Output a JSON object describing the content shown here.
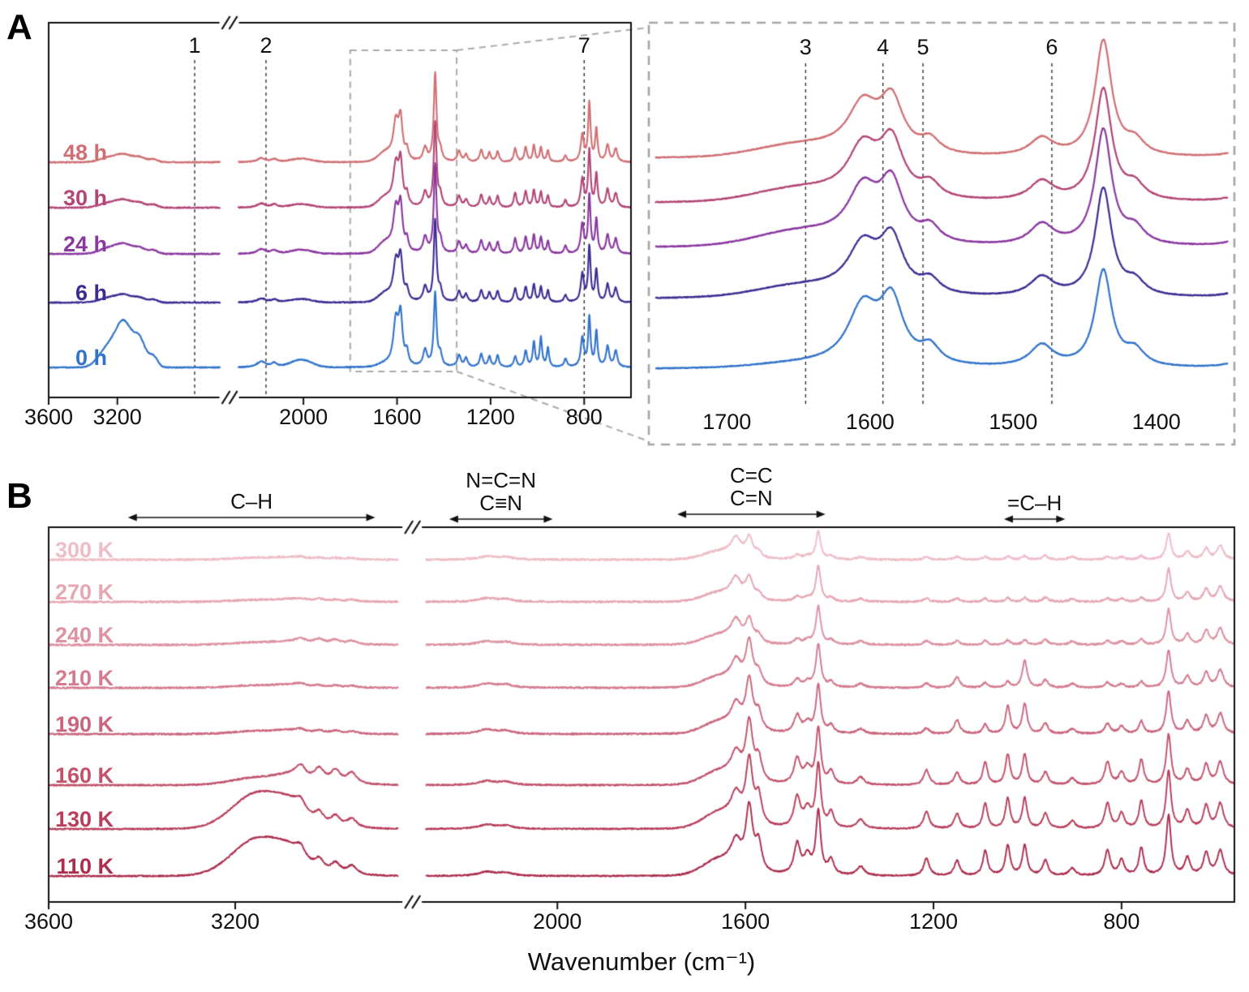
{
  "chart_data": [
    {
      "id": "panel_a_time_series",
      "type": "line",
      "panel_label": "A",
      "xlabel": "",
      "ylabel": "",
      "x_unit": "cm⁻¹",
      "x_axis_break": true,
      "x_ticks": [
        {
          "label": "3600",
          "value": 3600
        },
        {
          "label": "3200",
          "value": 3200
        },
        {
          "label": "2000",
          "value": 2000
        },
        {
          "label": "1600",
          "value": 1600
        },
        {
          "label": "1200",
          "value": 1200
        },
        {
          "label": "800",
          "value": 800
        }
      ],
      "marker_lines": [
        {
          "label": "1",
          "wavenumber": 2750
        },
        {
          "label": "2",
          "wavenumber": 2160
        },
        {
          "label": "7",
          "wavenumber": 800
        }
      ],
      "peaks_wn_width": [
        [
          3250,
          55
        ],
        [
          3160,
          45
        ],
        [
          3070,
          35
        ],
        [
          2990,
          25
        ],
        [
          2180,
          22
        ],
        [
          2125,
          16
        ],
        [
          2010,
          45
        ],
        [
          1650,
          30
        ],
        [
          1605,
          13
        ],
        [
          1585,
          10
        ],
        [
          1558,
          8
        ],
        [
          1480,
          10
        ],
        [
          1437,
          7
        ],
        [
          1415,
          8
        ],
        [
          1335,
          9
        ],
        [
          1305,
          8
        ],
        [
          1240,
          8
        ],
        [
          1205,
          7
        ],
        [
          1170,
          7
        ],
        [
          1095,
          7
        ],
        [
          1050,
          7
        ],
        [
          1015,
          6
        ],
        [
          985,
          6
        ],
        [
          955,
          6
        ],
        [
          880,
          7
        ],
        [
          808,
          8
        ],
        [
          778,
          6
        ],
        [
          748,
          6
        ],
        [
          700,
          8
        ],
        [
          665,
          8
        ]
      ],
      "series": [
        {
          "name": "48 h",
          "color": "#d06f73",
          "noise": 1.3,
          "amps": [
            0.08,
            0.12,
            0.08,
            0.05,
            0.07,
            0.05,
            0.06,
            0.15,
            0.62,
            0.68,
            0.18,
            0.23,
            1.5,
            0.18,
            0.18,
            0.12,
            0.2,
            0.16,
            0.18,
            0.23,
            0.25,
            0.28,
            0.24,
            0.19,
            0.11,
            0.46,
            1.0,
            0.55,
            0.29,
            0.23
          ]
        },
        {
          "name": "30 h",
          "color": "#b34577",
          "noise": 1.3,
          "amps": [
            0.08,
            0.12,
            0.08,
            0.05,
            0.07,
            0.05,
            0.06,
            0.16,
            0.65,
            0.72,
            0.19,
            0.25,
            1.45,
            0.19,
            0.19,
            0.13,
            0.21,
            0.17,
            0.19,
            0.25,
            0.27,
            0.3,
            0.26,
            0.2,
            0.12,
            0.48,
            0.97,
            0.56,
            0.3,
            0.24
          ]
        },
        {
          "name": "24 h",
          "color": "#8a37a0",
          "noise": 1.3,
          "amps": [
            0.1,
            0.15,
            0.1,
            0.06,
            0.08,
            0.06,
            0.07,
            0.18,
            0.68,
            0.75,
            0.2,
            0.27,
            1.5,
            0.2,
            0.2,
            0.14,
            0.22,
            0.18,
            0.2,
            0.26,
            0.28,
            0.32,
            0.28,
            0.21,
            0.13,
            0.5,
            1.0,
            0.58,
            0.31,
            0.25
          ]
        },
        {
          "name": "6 h",
          "color": "#3c2d93",
          "noise": 1.3,
          "amps": [
            0.08,
            0.12,
            0.08,
            0.05,
            0.07,
            0.05,
            0.06,
            0.14,
            0.62,
            0.7,
            0.18,
            0.25,
            1.4,
            0.18,
            0.18,
            0.13,
            0.2,
            0.17,
            0.19,
            0.24,
            0.26,
            0.3,
            0.26,
            0.2,
            0.12,
            0.48,
            0.95,
            0.55,
            0.3,
            0.24
          ]
        },
        {
          "name": "0 h",
          "color": "#3173cb",
          "noise": 1.2,
          "amps": [
            0.35,
            0.7,
            0.45,
            0.18,
            0.1,
            0.07,
            0.13,
            0.05,
            0.75,
            0.8,
            0.22,
            0.28,
            1.25,
            0.2,
            0.2,
            0.15,
            0.22,
            0.18,
            0.2,
            0.18,
            0.28,
            0.42,
            0.5,
            0.32,
            0.14,
            0.5,
            0.85,
            0.6,
            0.35,
            0.28
          ]
        }
      ],
      "inset": {
        "x_range": [
          1750,
          1350
        ],
        "zoom_source_range": [
          1800,
          1345
        ],
        "x_ticks": [
          {
            "label": "1700",
            "value": 1700
          },
          {
            "label": "1600",
            "value": 1600
          },
          {
            "label": "1500",
            "value": 1500
          },
          {
            "label": "1400",
            "value": 1400
          }
        ],
        "marker_lines": [
          {
            "label": "3",
            "wavenumber": 1645
          },
          {
            "label": "4",
            "wavenumber": 1591
          },
          {
            "label": "5",
            "wavenumber": 1563
          },
          {
            "label": "6",
            "wavenumber": 1473
          }
        ]
      }
    },
    {
      "id": "panel_b_temperature_series",
      "type": "line",
      "panel_label": "B",
      "xlabel": "Wavenumber (cm⁻¹)",
      "ylabel": "",
      "x_unit": "cm⁻¹",
      "x_axis_break": true,
      "x_ticks": [
        {
          "label": "3600",
          "value": 3600
        },
        {
          "label": "3200",
          "value": 3200
        },
        {
          "label": "2000",
          "value": 2000
        },
        {
          "label": "1600",
          "value": 1600
        },
        {
          "label": "1200",
          "value": 1200
        },
        {
          "label": "800",
          "value": 800
        }
      ],
      "annotations": [
        {
          "lines": [
            "C–H"
          ],
          "wn_from": 3430,
          "wn_to": 2900
        },
        {
          "lines": [
            "N=C=N",
            "C≡N"
          ],
          "wn_from": 2230,
          "wn_to": 2010
        },
        {
          "lines": [
            "C=C",
            "C=N"
          ],
          "wn_from": 1745,
          "wn_to": 1430
        },
        {
          "lines": [
            "=C–H"
          ],
          "wn_from": 1050,
          "wn_to": 920
        }
      ],
      "peaks_wn_width": [
        [
          3150,
          55
        ],
        [
          3080,
          30
        ],
        [
          3060,
          14
        ],
        [
          3020,
          13
        ],
        [
          2985,
          13
        ],
        [
          2950,
          13
        ],
        [
          2150,
          22
        ],
        [
          2110,
          18
        ],
        [
          1655,
          35
        ],
        [
          1620,
          13
        ],
        [
          1592,
          9
        ],
        [
          1572,
          8
        ],
        [
          1490,
          8
        ],
        [
          1468,
          9
        ],
        [
          1445,
          6
        ],
        [
          1418,
          7
        ],
        [
          1355,
          9
        ],
        [
          1215,
          7
        ],
        [
          1150,
          7
        ],
        [
          1090,
          6
        ],
        [
          1042,
          6
        ],
        [
          1006,
          6
        ],
        [
          962,
          7
        ],
        [
          905,
          8
        ],
        [
          830,
          7
        ],
        [
          800,
          7
        ],
        [
          758,
          6
        ],
        [
          700,
          6
        ],
        [
          660,
          7
        ],
        [
          620,
          7
        ],
        [
          590,
          8
        ]
      ],
      "series": [
        {
          "name": "300 K",
          "color": "#efbdc7",
          "noise": 2.4,
          "amps": [
            0.04,
            0.03,
            0.03,
            0.03,
            0.03,
            0.03,
            0.06,
            0.05,
            0.15,
            0.35,
            0.38,
            0.12,
            0.08,
            0.06,
            0.55,
            0.06,
            0.05,
            0.06,
            0.06,
            0.06,
            0.07,
            0.07,
            0.08,
            0.06,
            0.06,
            0.05,
            0.07,
            0.52,
            0.16,
            0.22,
            0.28
          ]
        },
        {
          "name": "270 K",
          "color": "#e6a7b3",
          "noise": 2.3,
          "amps": [
            0.04,
            0.03,
            0.04,
            0.05,
            0.04,
            0.04,
            0.07,
            0.05,
            0.17,
            0.38,
            0.42,
            0.13,
            0.09,
            0.07,
            0.7,
            0.07,
            0.06,
            0.07,
            0.07,
            0.07,
            0.08,
            0.08,
            0.09,
            0.06,
            0.07,
            0.06,
            0.08,
            0.65,
            0.18,
            0.25,
            0.3
          ]
        },
        {
          "name": "240 K",
          "color": "#dd91a1",
          "noise": 2.2,
          "amps": [
            0.05,
            0.04,
            0.08,
            0.1,
            0.09,
            0.07,
            0.07,
            0.05,
            0.18,
            0.4,
            0.45,
            0.15,
            0.1,
            0.08,
            0.75,
            0.08,
            0.07,
            0.08,
            0.08,
            0.08,
            0.09,
            0.1,
            0.1,
            0.07,
            0.08,
            0.07,
            0.1,
            0.7,
            0.2,
            0.28,
            0.32
          ]
        },
        {
          "name": "210 K",
          "color": "#d47b8f",
          "noise": 2.0,
          "amps": [
            0.05,
            0.04,
            0.05,
            0.04,
            0.04,
            0.04,
            0.08,
            0.06,
            0.2,
            0.42,
            0.85,
            0.25,
            0.15,
            0.1,
            0.85,
            0.1,
            0.08,
            0.09,
            0.22,
            0.1,
            0.12,
            0.55,
            0.15,
            0.08,
            0.1,
            0.08,
            0.12,
            0.75,
            0.22,
            0.3,
            0.35
          ]
        },
        {
          "name": "190 K",
          "color": "#cb657d",
          "noise": 2.0,
          "amps": [
            0.06,
            0.05,
            0.05,
            0.06,
            0.06,
            0.05,
            0.09,
            0.06,
            0.22,
            0.45,
            1.0,
            0.35,
            0.35,
            0.2,
            0.95,
            0.15,
            0.1,
            0.12,
            0.28,
            0.18,
            0.55,
            0.6,
            0.2,
            0.1,
            0.2,
            0.15,
            0.25,
            0.85,
            0.25,
            0.35,
            0.4
          ]
        },
        {
          "name": "160 K",
          "color": "#c2526b",
          "noise": 1.8,
          "amps": [
            0.15,
            0.12,
            0.25,
            0.28,
            0.26,
            0.22,
            0.08,
            0.06,
            0.25,
            0.48,
            1.15,
            0.45,
            0.5,
            0.3,
            1.1,
            0.25,
            0.15,
            0.3,
            0.25,
            0.45,
            0.6,
            0.6,
            0.25,
            0.13,
            0.45,
            0.25,
            0.5,
            1.0,
            0.3,
            0.4,
            0.45
          ]
        },
        {
          "name": "130 K",
          "color": "#b83e5b",
          "noise": 1.7,
          "amps": [
            0.72,
            0.25,
            0.22,
            0.25,
            0.22,
            0.18,
            0.08,
            0.06,
            0.3,
            0.5,
            1.25,
            0.55,
            0.6,
            0.35,
            1.25,
            0.3,
            0.18,
            0.35,
            0.3,
            0.5,
            0.6,
            0.6,
            0.3,
            0.15,
            0.5,
            0.3,
            0.55,
            1.15,
            0.35,
            0.45,
            0.5
          ]
        },
        {
          "name": "110 K",
          "color": "#ad2d4d",
          "noise": 1.7,
          "amps": [
            0.75,
            0.25,
            0.22,
            0.25,
            0.22,
            0.18,
            0.08,
            0.06,
            0.3,
            0.5,
            1.25,
            0.55,
            0.6,
            0.35,
            1.25,
            0.3,
            0.18,
            0.35,
            0.3,
            0.5,
            0.6,
            0.6,
            0.3,
            0.15,
            0.5,
            0.3,
            0.55,
            1.2,
            0.35,
            0.45,
            0.5
          ]
        }
      ]
    }
  ]
}
